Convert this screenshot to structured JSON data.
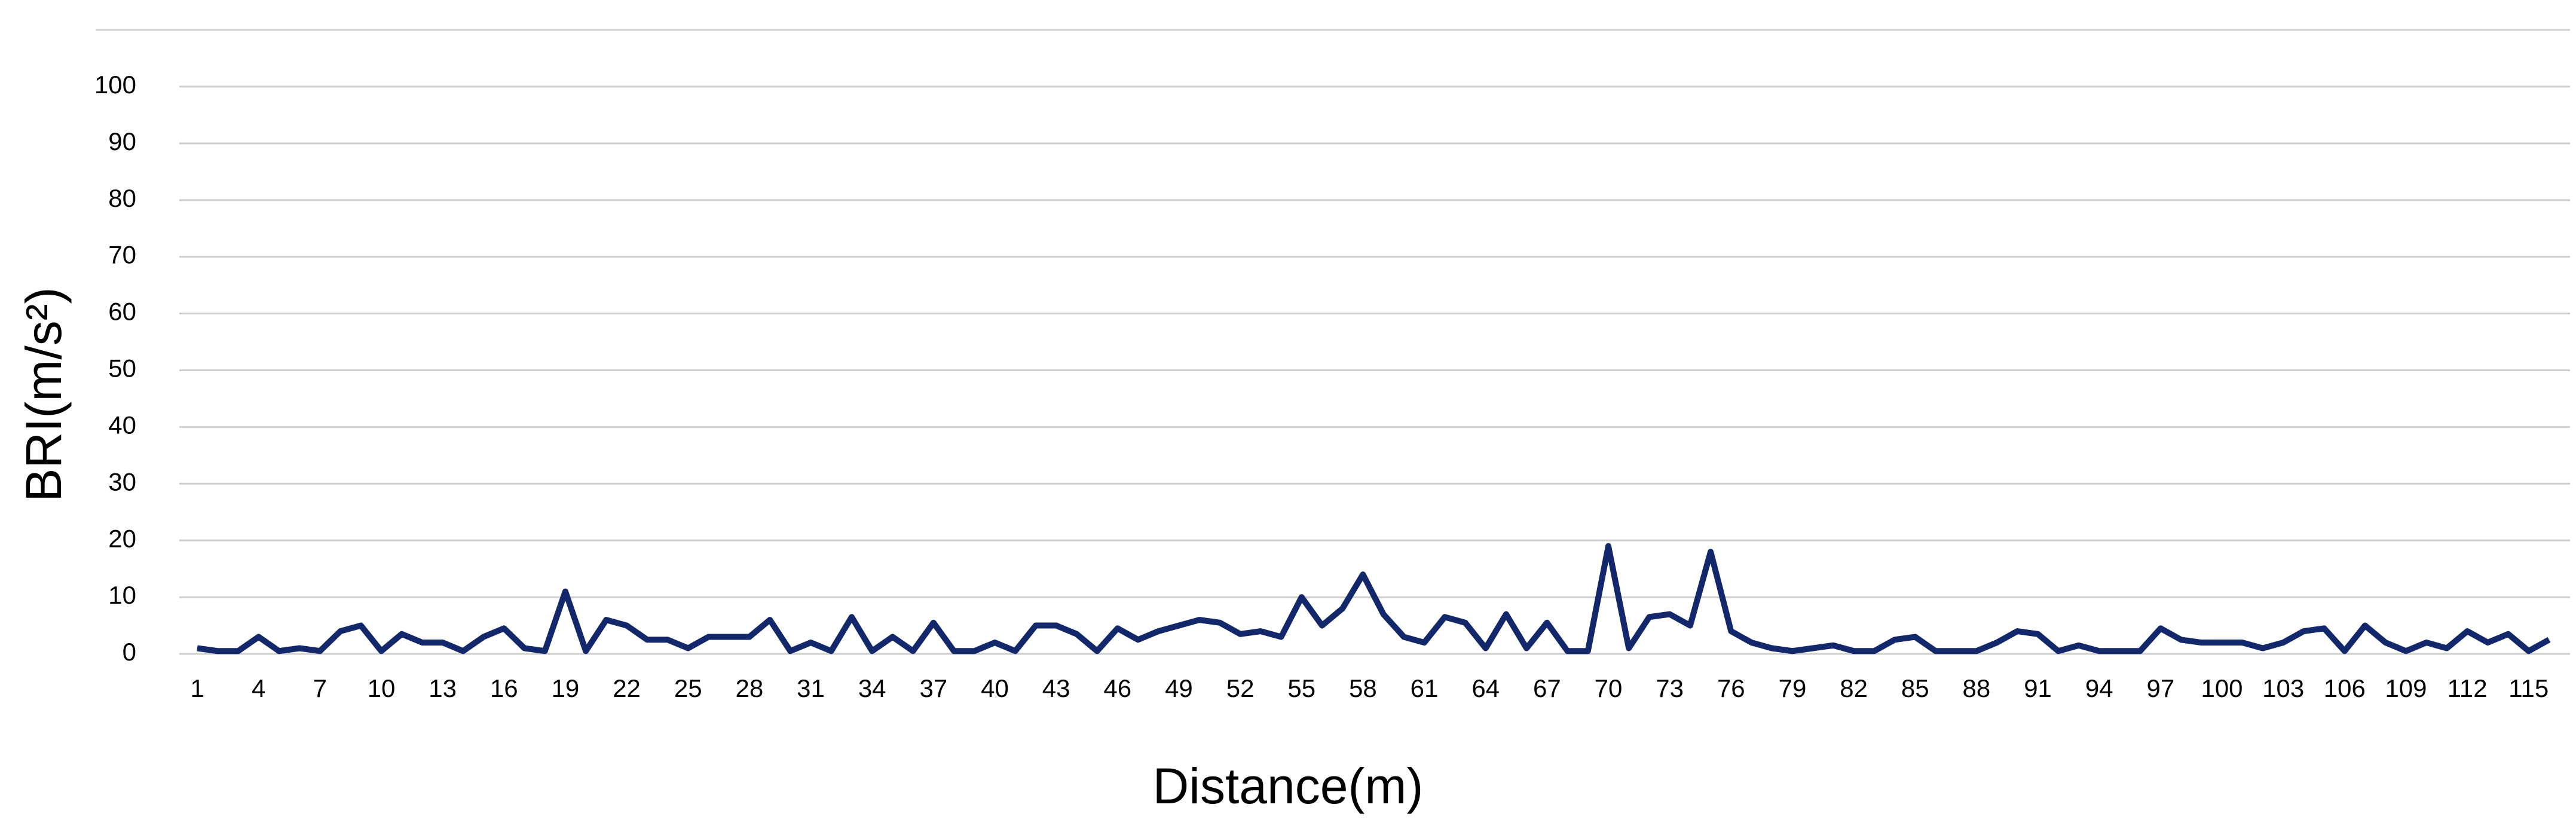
{
  "chart_data": {
    "type": "line",
    "x_label": "Distance(m)",
    "y_label": "BRI(m/s²)",
    "categories": [
      "1",
      null,
      null,
      "4",
      null,
      null,
      "7",
      null,
      null,
      "10",
      null,
      null,
      "13",
      null,
      null,
      "16",
      null,
      null,
      "19",
      null,
      null,
      "22",
      null,
      null,
      "25",
      null,
      null,
      "28",
      null,
      null,
      "31",
      null,
      null,
      "34",
      null,
      null,
      "37",
      null,
      null,
      "40",
      null,
      null,
      "43",
      null,
      null,
      "46",
      null,
      null,
      "49",
      null,
      null,
      "52",
      null,
      null,
      "55",
      null,
      null,
      "58",
      null,
      null,
      "61",
      null,
      null,
      "64",
      null,
      null,
      "67",
      null,
      null,
      "70",
      null,
      null,
      "73",
      null,
      null,
      "76",
      null,
      null,
      "79",
      null,
      null,
      "82",
      null,
      null,
      "85",
      null,
      null,
      "88",
      null,
      null,
      "91",
      null,
      null,
      "94",
      null,
      null,
      "97",
      null,
      null,
      "100",
      null,
      null,
      "103",
      null,
      null,
      "106",
      null,
      null,
      "109",
      null,
      null,
      "112",
      null,
      null,
      "115",
      null
    ],
    "series": [
      {
        "color": "#13286b",
        "values": [
          1,
          0.5,
          0.5,
          3,
          0.5,
          1,
          0.5,
          4,
          5,
          0.5,
          3.5,
          2,
          2,
          0.5,
          3,
          4.5,
          1,
          0.5,
          11,
          0.5,
          6,
          5,
          2.5,
          2.5,
          1,
          3,
          3,
          3,
          6,
          0.5,
          2,
          0.5,
          6.5,
          0.5,
          3,
          0.5,
          5.5,
          0.5,
          0.5,
          2,
          0.5,
          5,
          5,
          3.5,
          0.5,
          4.5,
          2.5,
          4,
          5,
          6,
          5.5,
          3.5,
          4,
          3,
          10,
          5,
          8,
          14,
          7,
          3,
          2,
          6.5,
          5.5,
          1,
          7,
          1,
          5.5,
          0.5,
          0.5,
          19,
          1,
          6.5,
          7,
          5,
          18,
          4,
          2,
          1,
          0.5,
          1,
          1.5,
          0.5,
          0.5,
          2.5,
          3,
          0.5,
          0.5,
          0.5,
          2,
          4,
          3.5,
          0.5,
          1.5,
          0.5,
          0.5,
          0.5,
          4.5,
          2.5,
          2,
          2,
          2,
          1,
          2,
          4,
          4.5,
          0.5,
          5,
          2,
          0.5,
          2,
          1,
          4,
          2,
          3.5,
          0.5,
          2.5
        ]
      }
    ],
    "ylim": [
      0,
      110
    ],
    "yticks": [
      0,
      10,
      20,
      30,
      40,
      50,
      60,
      70,
      80,
      90,
      100
    ],
    "grid": true
  }
}
